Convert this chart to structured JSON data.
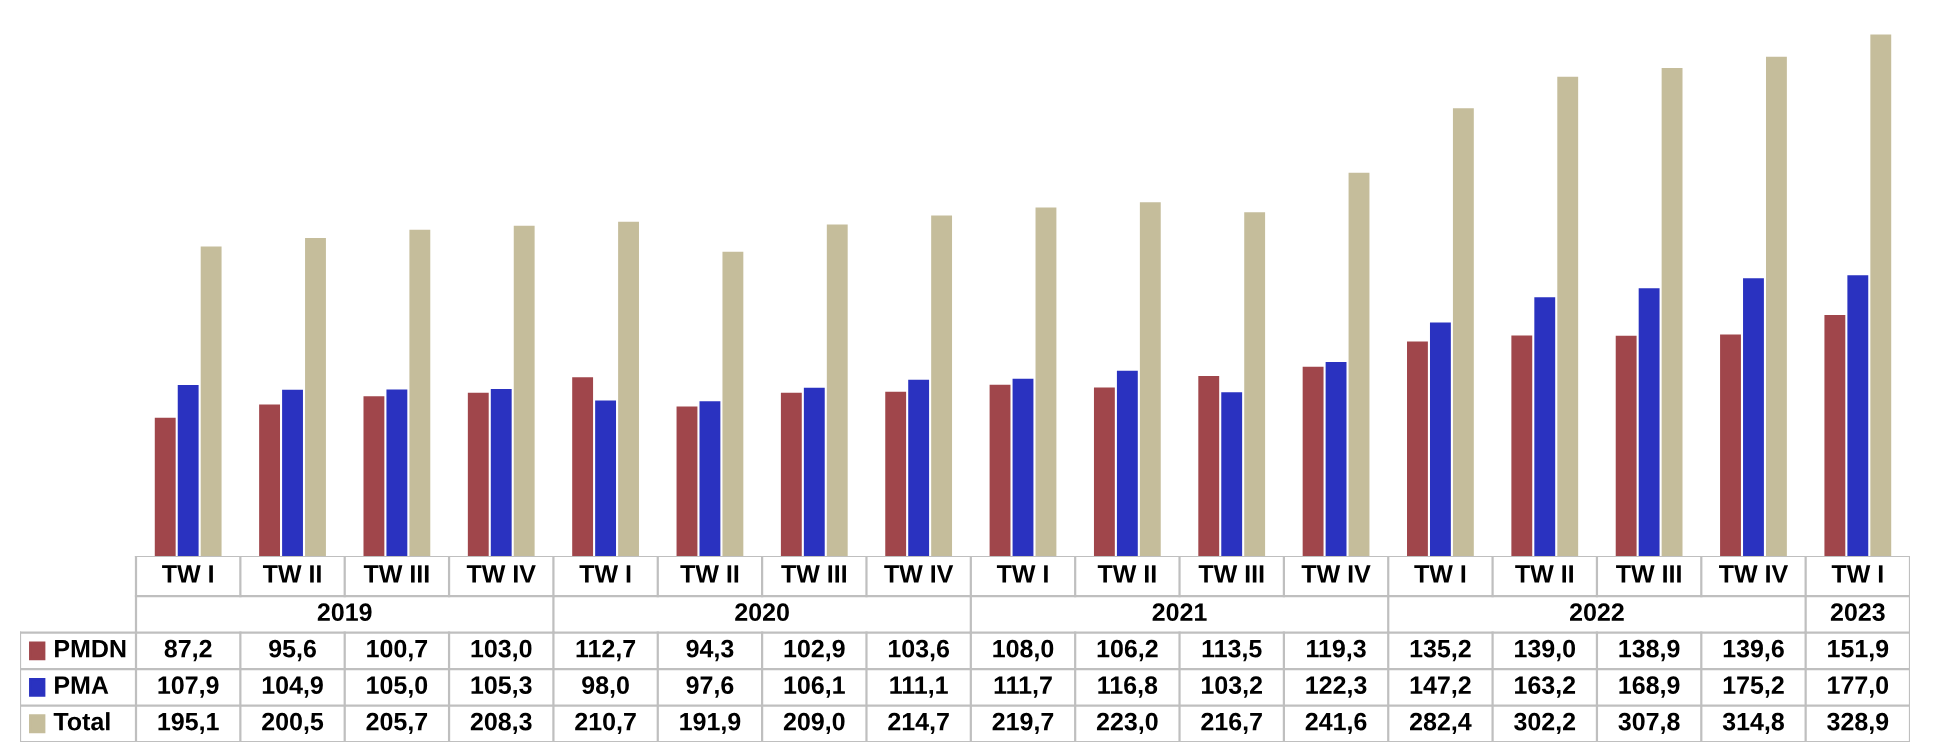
{
  "chart_data": {
    "type": "bar",
    "categories": [
      "TW I",
      "TW II",
      "TW III",
      "TW IV",
      "TW I",
      "TW II",
      "TW III",
      "TW IV",
      "TW I",
      "TW II",
      "TW III",
      "TW IV",
      "TW I",
      "TW II",
      "TW III",
      "TW IV",
      "TW I"
    ],
    "annotations": [
      "2019",
      "2020",
      "2021",
      "2022",
      "2023"
    ],
    "series": [
      {
        "name": "PMDN",
        "color": "#a0464b",
        "values": [
          87.2,
          95.6,
          100.7,
          103.0,
          112.7,
          94.3,
          102.9,
          103.6,
          108.0,
          106.2,
          113.5,
          119.3,
          135.2,
          139.0,
          138.9,
          139.6,
          151.9
        ],
        "value_labels": [
          "87,2",
          "95,6",
          "100,7",
          "103,0",
          "112,7",
          "94,3",
          "102,9",
          "103,6",
          "108,0",
          "106,2",
          "113,5",
          "119,3",
          "135,2",
          "139,0",
          "138,9",
          "139,6",
          "151,9"
        ]
      },
      {
        "name": "PMA",
        "color": "#2a32c0",
        "values": [
          107.9,
          104.9,
          105.0,
          105.3,
          98.0,
          97.6,
          106.1,
          111.1,
          111.7,
          116.8,
          103.2,
          122.3,
          147.2,
          163.2,
          168.9,
          175.2,
          177.0
        ],
        "value_labels": [
          "107,9",
          "104,9",
          "105,0",
          "105,3",
          "98,0",
          "97,6",
          "106,1",
          "111,1",
          "111,7",
          "116,8",
          "103,2",
          "122,3",
          "147,2",
          "163,2",
          "168,9",
          "175,2",
          "177,0"
        ]
      },
      {
        "name": "Total",
        "color": "#c5bd9b",
        "values": [
          195.1,
          200.5,
          205.7,
          208.3,
          210.7,
          191.9,
          209.0,
          214.7,
          219.7,
          223.0,
          216.7,
          241.6,
          282.4,
          302.2,
          307.8,
          314.8,
          328.9
        ],
        "value_labels": [
          "195,1",
          "200,5",
          "205,7",
          "208,3",
          "210,7",
          "191,9",
          "209,0",
          "214,7",
          "219,7",
          "223,0",
          "216,7",
          "241,6",
          "282,4",
          "302,2",
          "307,8",
          "314,8",
          "328,9"
        ]
      }
    ],
    "legend": "bottom left"
  }
}
